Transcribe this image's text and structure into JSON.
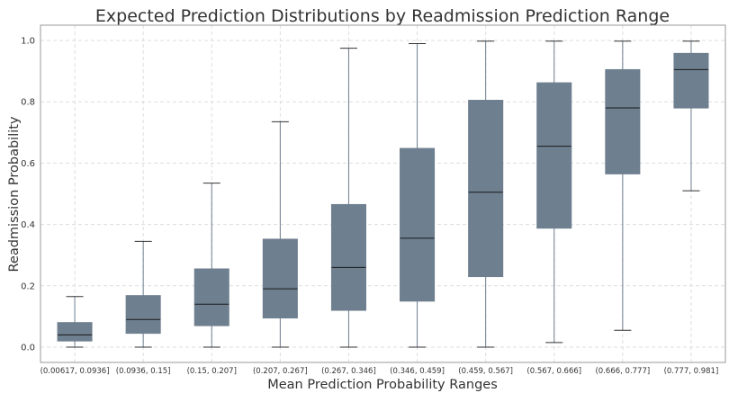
{
  "chart_data": {
    "type": "box",
    "title": "Expected Prediction Distributions by Readmission Prediction Range",
    "xlabel": "Mean Prediction Probability Ranges",
    "ylabel": "Readmission Probability",
    "ylim": [
      -0.05,
      1.05
    ],
    "yticks": [
      0.0,
      0.2,
      0.4,
      0.6,
      0.8,
      1.0
    ],
    "ytick_labels": [
      "0.0",
      "0.2",
      "0.4",
      "0.6",
      "0.8",
      "1.0"
    ],
    "grid": true,
    "categories": [
      "(0.00617, 0.0936]",
      "(0.0936, 0.15]",
      "(0.15, 0.207]",
      "(0.207, 0.267]",
      "(0.267, 0.346]",
      "(0.346, 0.459]",
      "(0.459, 0.567]",
      "(0.567, 0.666]",
      "(0.666, 0.777]",
      "(0.777, 0.981]"
    ],
    "boxes": [
      {
        "whisker_low": 0.0,
        "q1": 0.02,
        "median": 0.04,
        "q3": 0.08,
        "whisker_high": 0.165
      },
      {
        "whisker_low": 0.0,
        "q1": 0.045,
        "median": 0.09,
        "q3": 0.168,
        "whisker_high": 0.345
      },
      {
        "whisker_low": 0.0,
        "q1": 0.07,
        "median": 0.14,
        "q3": 0.255,
        "whisker_high": 0.535
      },
      {
        "whisker_low": 0.0,
        "q1": 0.095,
        "median": 0.19,
        "q3": 0.352,
        "whisker_high": 0.735
      },
      {
        "whisker_low": 0.0,
        "q1": 0.12,
        "median": 0.26,
        "q3": 0.465,
        "whisker_high": 0.975
      },
      {
        "whisker_low": 0.0,
        "q1": 0.15,
        "median": 0.355,
        "q3": 0.648,
        "whisker_high": 0.99
      },
      {
        "whisker_low": 0.0,
        "q1": 0.23,
        "median": 0.505,
        "q3": 0.805,
        "whisker_high": 0.998
      },
      {
        "whisker_low": 0.015,
        "q1": 0.388,
        "median": 0.655,
        "q3": 0.862,
        "whisker_high": 0.998
      },
      {
        "whisker_low": 0.055,
        "q1": 0.565,
        "median": 0.78,
        "q3": 0.905,
        "whisker_high": 0.998
      },
      {
        "whisker_low": 0.51,
        "q1": 0.78,
        "median": 0.905,
        "q3": 0.958,
        "whisker_high": 0.998
      }
    ],
    "colors": {
      "box_fill": "#6e7f8f",
      "median": "#1a1a1a",
      "whisker": "#6e7f8f",
      "cap": "#333333",
      "grid": "#dddddd",
      "axes_edge": "#999999",
      "text": "#333333"
    }
  }
}
